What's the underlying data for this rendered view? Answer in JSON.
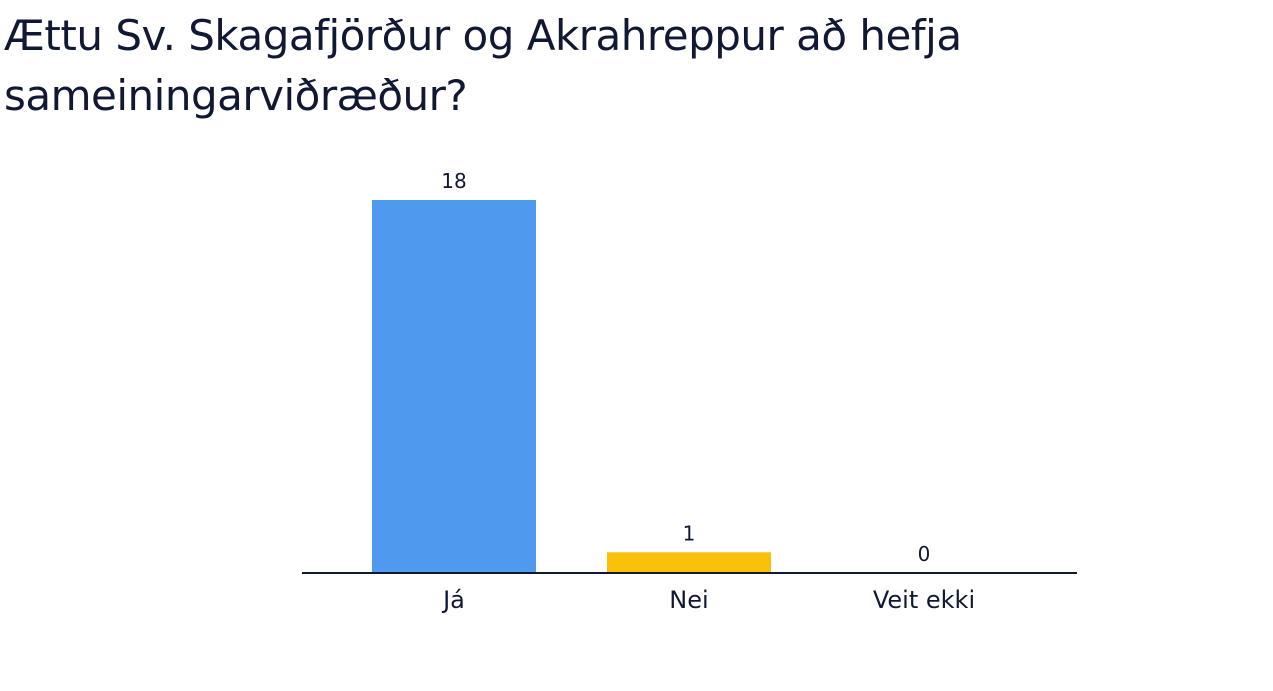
{
  "chart_data": {
    "type": "bar",
    "title": "Ættu Sv. Skagafjörður og Akrahreppur að hefja sameiningarviðræður?",
    "categories": [
      "Já",
      "Nei",
      "Veit ekki"
    ],
    "values": [
      18,
      1,
      0
    ],
    "colors": [
      "#4f9aef",
      "#f9c10a",
      "#f1654a"
    ]
  }
}
